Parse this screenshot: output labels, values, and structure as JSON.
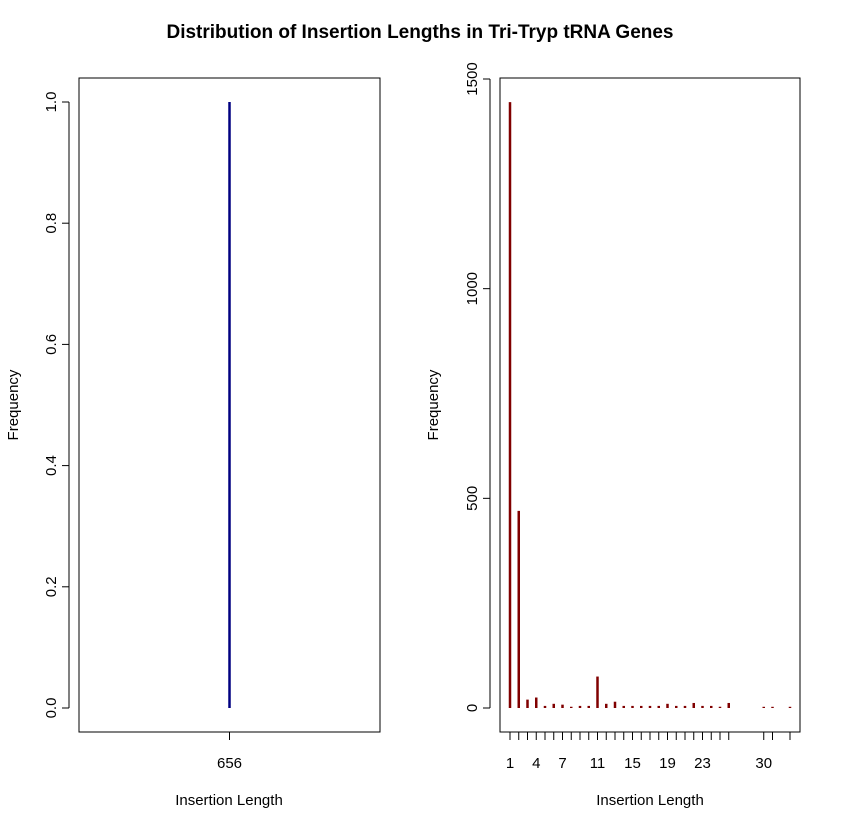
{
  "title": "Distribution of Insertion Lengths in Tri-Tryp tRNA Genes",
  "chart_data": [
    {
      "type": "bar",
      "title": "",
      "xlabel": "Insertion Length",
      "ylabel": "Frequency",
      "color": "#000080",
      "x": [
        656
      ],
      "values": [
        1
      ],
      "xticks": [
        656
      ],
      "yticks": [
        0.0,
        0.2,
        0.4,
        0.6,
        0.8,
        1.0
      ],
      "ylim": [
        0,
        1.04
      ],
      "grid": false
    },
    {
      "type": "bar",
      "title": "",
      "xlabel": "Insertion Length",
      "ylabel": "Frequency",
      "color": "#800000",
      "x": [
        1,
        2,
        3,
        4,
        5,
        6,
        7,
        8,
        9,
        10,
        11,
        12,
        13,
        14,
        15,
        16,
        17,
        18,
        19,
        20,
        21,
        22,
        23,
        24,
        25,
        26,
        30,
        31,
        33
      ],
      "values": [
        1445,
        470,
        20,
        25,
        5,
        10,
        8,
        3,
        5,
        5,
        75,
        10,
        15,
        5,
        5,
        5,
        5,
        5,
        10,
        5,
        5,
        12,
        5,
        5,
        3,
        12,
        2,
        2,
        1
      ],
      "xticks": [
        1,
        4,
        7,
        11,
        15,
        19,
        23,
        30
      ],
      "yticks": [
        0,
        500,
        1000,
        1500
      ],
      "ylim": [
        0,
        1500
      ],
      "grid": false
    }
  ]
}
